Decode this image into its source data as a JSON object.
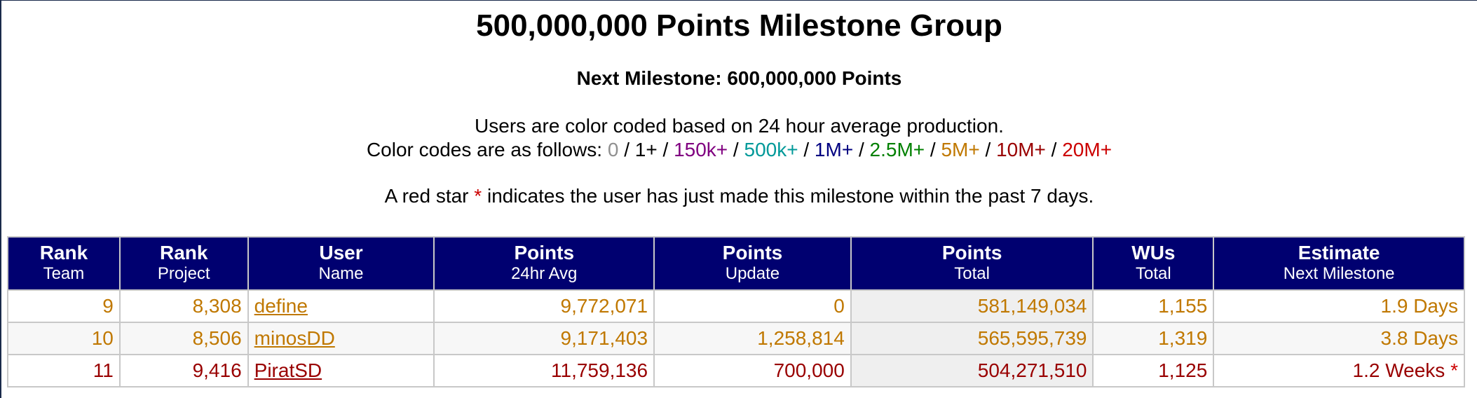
{
  "page": {
    "title": "500,000,000 Points Milestone Group",
    "next_milestone": "Next Milestone: 600,000,000 Points",
    "desc_line1": "Users are color coded based on 24 hour average production.",
    "desc_line2_prefix": "Color codes are as follows: ",
    "color_codes": [
      {
        "label": "0",
        "color": "#909090"
      },
      {
        "label": "1+",
        "color": "#000000"
      },
      {
        "label": "150k+",
        "color": "#800080"
      },
      {
        "label": "500k+",
        "color": "#009999"
      },
      {
        "label": "1M+",
        "color": "#000080"
      },
      {
        "label": "2.5M+",
        "color": "#008000"
      },
      {
        "label": "5M+",
        "color": "#c07800"
      },
      {
        "label": "10M+",
        "color": "#990000"
      },
      {
        "label": "20M+",
        "color": "#cc0000"
      }
    ],
    "separator": " / ",
    "note_prefix": "A red star ",
    "note_star": "*",
    "note_suffix": " indicates the user has just made this milestone within the past 7 days."
  },
  "table": {
    "headers": [
      {
        "line1": "Rank",
        "line2": "Team"
      },
      {
        "line1": "Rank",
        "line2": "Project"
      },
      {
        "line1": "User",
        "line2": "Name"
      },
      {
        "line1": "Points",
        "line2": "24hr Avg"
      },
      {
        "line1": "Points",
        "line2": "Update"
      },
      {
        "line1": "Points",
        "line2": "Total"
      },
      {
        "line1": "WUs",
        "line2": "Total"
      },
      {
        "line1": "Estimate",
        "line2": "Next Milestone"
      }
    ],
    "rows": [
      {
        "rank_team": "9",
        "rank_project": "8,308",
        "name": "define",
        "avg": "9,772,071",
        "update": "0",
        "total": "581,149,034",
        "wus": "1,155",
        "estimate": "1.9 Days",
        "star": "",
        "color": "#c07800"
      },
      {
        "rank_team": "10",
        "rank_project": "8,506",
        "name": "minosDD",
        "avg": "9,171,403",
        "update": "1,258,814",
        "total": "565,595,739",
        "wus": "1,319",
        "estimate": "3.8 Days",
        "star": "",
        "color": "#c07800"
      },
      {
        "rank_team": "11",
        "rank_project": "9,416",
        "name": "PiratSD",
        "avg": "11,759,136",
        "update": "700,000",
        "total": "504,271,510",
        "wus": "1,125",
        "estimate": "1.2 Weeks",
        "star": "*",
        "color": "#990000"
      }
    ]
  }
}
